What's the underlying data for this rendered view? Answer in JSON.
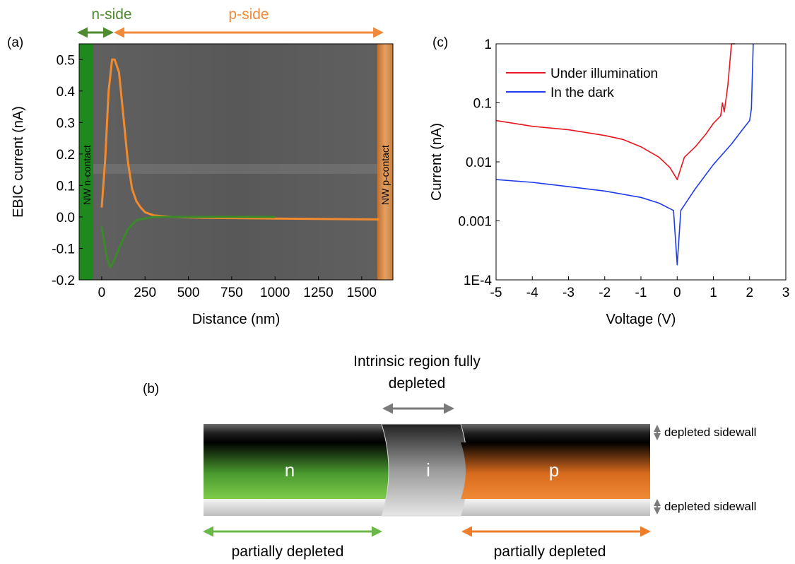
{
  "panels": {
    "a_label": "(a)",
    "b_label": "(b)",
    "c_label": "(c)"
  },
  "panel_a": {
    "n_side": "n-side",
    "p_side": "p-side",
    "n_contact": "NW n-contact",
    "p_contact": "NW p-contact",
    "colors": {
      "n": "#3a8a2a",
      "p": "#f28a2e",
      "nside_arrow": "#4e8a30",
      "pside_arrow": "#f28a3c"
    }
  },
  "panel_b": {
    "intrinsic_label_line1": "Intrinsic region fully",
    "intrinsic_label_line2": "depleted",
    "n": "n",
    "i": "i",
    "p": "p",
    "depleted_top": "depleted sidewall",
    "depleted_bottom": "depleted sidewall",
    "partial_left": "partially depleted",
    "partial_right": "partially depleted"
  },
  "chart_data": [
    {
      "type": "line",
      "xlabel": "Distance (nm)",
      "ylabel": "EBIC current (nA)",
      "xlim": [
        -130,
        1680
      ],
      "ylim": [
        -0.2,
        0.55
      ],
      "xticks": [
        0,
        250,
        500,
        750,
        1000,
        1250,
        1500
      ],
      "yticks": [
        -0.2,
        -0.1,
        0.0,
        0.1,
        0.2,
        0.3,
        0.4,
        0.5
      ],
      "ytick_labels": [
        "-0.2",
        "-0.1",
        "0.0",
        "0.1",
        "0.2",
        "0.3",
        "0.4",
        "0.5"
      ],
      "series": [
        {
          "color": "#f28a2e",
          "x": [
            0,
            20,
            40,
            60,
            75,
            100,
            125,
            150,
            175,
            200,
            225,
            250,
            300,
            400,
            600,
            1000,
            1600
          ],
          "y": [
            0.03,
            0.18,
            0.4,
            0.5,
            0.5,
            0.46,
            0.32,
            0.18,
            0.09,
            0.05,
            0.03,
            0.015,
            0.005,
            0.0,
            -0.003,
            -0.005,
            -0.008
          ]
        },
        {
          "color": "#3a8a2a",
          "x": [
            0,
            15,
            30,
            50,
            70,
            100,
            150,
            200,
            300,
            500,
            1000
          ],
          "y": [
            -0.03,
            -0.08,
            -0.13,
            -0.16,
            -0.14,
            -0.1,
            -0.04,
            -0.01,
            0.0,
            0.0,
            0.0
          ]
        }
      ]
    },
    {
      "type": "line",
      "xlabel": "Voltage (V)",
      "ylabel": "Current (nA)",
      "xlim": [
        -5,
        3
      ],
      "ylim": [
        0.0001,
        1
      ],
      "yscale": "log",
      "xticks": [
        -5,
        -4,
        -3,
        -2,
        -1,
        0,
        1,
        2,
        3
      ],
      "yticks": [
        0.0001,
        0.001,
        0.01,
        0.1,
        1
      ],
      "ytick_labels": [
        "1E-4",
        "0.001",
        "0.01",
        "0.1",
        "1"
      ],
      "legend_position": "top-left",
      "series": [
        {
          "name": "Under illumination",
          "color": "#e8161e",
          "x": [
            -5,
            -4,
            -3,
            -2,
            -1.5,
            -1,
            -0.5,
            -0.2,
            0,
            0.2,
            0.5,
            0.8,
            1.0,
            1.2,
            1.25,
            1.3,
            1.4,
            1.5,
            1.6
          ],
          "y": [
            0.05,
            0.04,
            0.035,
            0.028,
            0.024,
            0.018,
            0.012,
            0.008,
            0.005,
            0.012,
            0.018,
            0.03,
            0.045,
            0.06,
            0.1,
            0.07,
            0.2,
            1,
            1
          ]
        },
        {
          "name": "In the dark",
          "color": "#1e3ce8",
          "x": [
            -5,
            -4,
            -3,
            -2,
            -1,
            -0.5,
            -0.1,
            0,
            0.1,
            0.5,
            1.0,
            1.5,
            1.8,
            2.0,
            2.05,
            2.1
          ],
          "y": [
            0.005,
            0.0045,
            0.0038,
            0.0032,
            0.0025,
            0.002,
            0.0015,
            0.00018,
            0.0015,
            0.0035,
            0.009,
            0.02,
            0.035,
            0.05,
            0.08,
            1
          ]
        }
      ]
    }
  ]
}
